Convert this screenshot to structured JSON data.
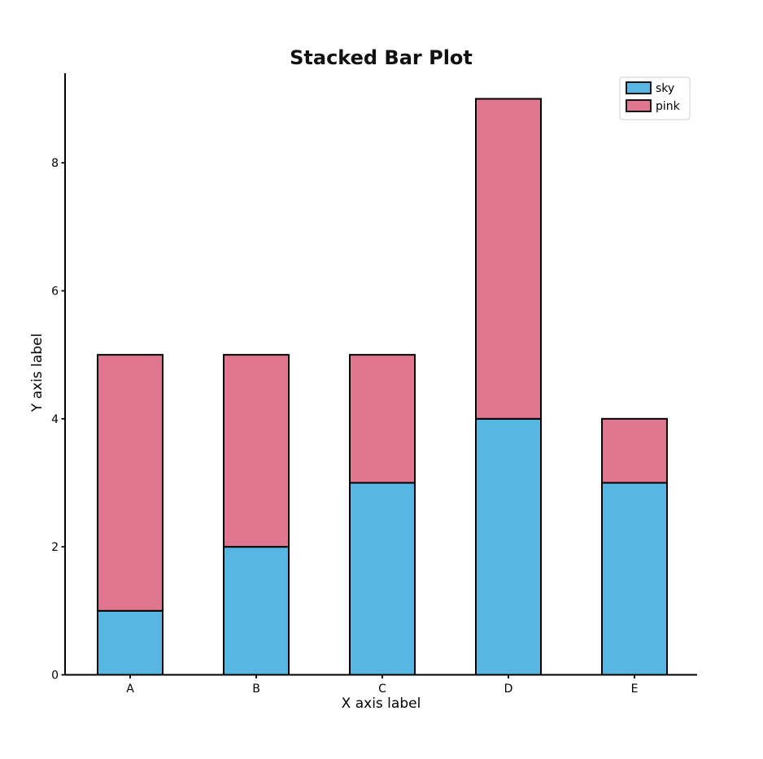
{
  "chart_data": {
    "type": "bar",
    "stacked": true,
    "title": "Stacked Bar Plot",
    "xlabel": "X axis label",
    "ylabel": "Y axis label",
    "categories": [
      "A",
      "B",
      "C",
      "D",
      "E"
    ],
    "series": [
      {
        "name": "sky",
        "color": "#58B6E3",
        "values": [
          1,
          2,
          3,
          4,
          3
        ]
      },
      {
        "name": "pink",
        "color": "#E0768F",
        "values": [
          4,
          3,
          2,
          5,
          1
        ]
      }
    ],
    "totals": [
      5,
      5,
      5,
      9,
      4
    ],
    "yticks": [
      0,
      2,
      4,
      6,
      8
    ],
    "ylim": [
      0,
      9.4
    ],
    "grid": false,
    "legend": {
      "position": "upper right",
      "entries": [
        "sky",
        "pink"
      ]
    },
    "bar_edge_color": "#000000",
    "axis_color": "#000000",
    "tick_label_color": "#000000",
    "legend_border_color": "#cfcfcf",
    "background": "#ffffff"
  }
}
